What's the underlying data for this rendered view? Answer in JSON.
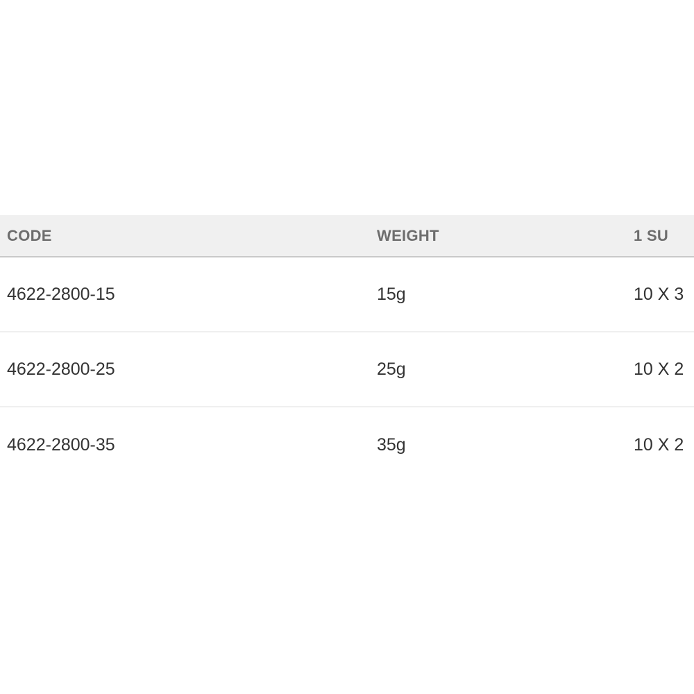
{
  "table": {
    "columns": [
      {
        "label": "CODE"
      },
      {
        "label": "WEIGHT"
      },
      {
        "label": "1 SU"
      }
    ],
    "rows": [
      {
        "code": "4622-2800-15",
        "weight": "15g",
        "su": "10 X 3"
      },
      {
        "code": "4622-2800-25",
        "weight": "25g",
        "su": "10 X 2"
      },
      {
        "code": "4622-2800-35",
        "weight": "35g",
        "su": "10 X 2"
      }
    ]
  },
  "colors": {
    "header_background": "#f0f0f0",
    "header_text": "#6d6d6d",
    "header_border": "#c9c9c9",
    "row_divider": "#efefef",
    "data_text": "#333333",
    "page_background": "#ffffff"
  }
}
